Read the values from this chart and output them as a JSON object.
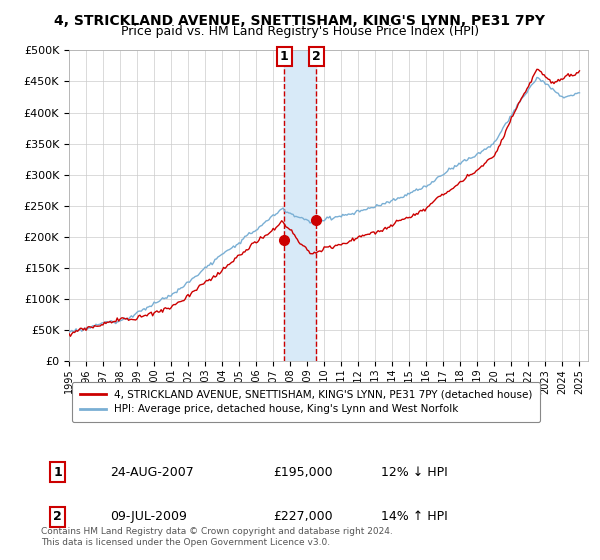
{
  "title_line1": "4, STRICKLAND AVENUE, SNETTISHAM, KING'S LYNN, PE31 7PY",
  "title_line2": "Price paid vs. HM Land Registry's House Price Index (HPI)",
  "ylabel_vals": [
    0,
    50000,
    100000,
    150000,
    200000,
    250000,
    300000,
    350000,
    400000,
    450000,
    500000
  ],
  "ylabel_labels": [
    "£0",
    "£50K",
    "£100K",
    "£150K",
    "£200K",
    "£250K",
    "£300K",
    "£350K",
    "£400K",
    "£450K",
    "£500K"
  ],
  "ylim": [
    0,
    500000
  ],
  "xlim_start": 1995.0,
  "xlim_end": 2025.5,
  "xtick_labels": [
    "1995",
    "1996",
    "1997",
    "1998",
    "1999",
    "2000",
    "2001",
    "2002",
    "2003",
    "2004",
    "2005",
    "2006",
    "2007",
    "2008",
    "2009",
    "2010",
    "2011",
    "2012",
    "2013",
    "2014",
    "2015",
    "2016",
    "2017",
    "2018",
    "2019",
    "2020",
    "2021",
    "2022",
    "2023",
    "2024",
    "2025"
  ],
  "sale1_x": 2007.648,
  "sale1_y": 195000,
  "sale2_x": 2009.52,
  "sale2_y": 227000,
  "sale1_label": "1",
  "sale2_label": "2",
  "vline1_x": 2007.648,
  "vline2_x": 2009.52,
  "vshade_x1": 2007.648,
  "vshade_x2": 2009.52,
  "legend_line1_label": "4, STRICKLAND AVENUE, SNETTISHAM, KING'S LYNN, PE31 7PY (detached house)",
  "legend_line2_label": "HPI: Average price, detached house, King's Lynn and West Norfolk",
  "table_row1": [
    "1",
    "24-AUG-2007",
    "£195,000",
    "12% ↓ HPI"
  ],
  "table_row2": [
    "2",
    "09-JUL-2009",
    "£227,000",
    "14% ↑ HPI"
  ],
  "footnote": "Contains HM Land Registry data © Crown copyright and database right 2024.\nThis data is licensed under the Open Government Licence v3.0.",
  "red_color": "#cc0000",
  "blue_color": "#7aafd4",
  "shade_color": "#d8eaf8",
  "grid_color": "#cccccc",
  "bg_color": "#ffffff",
  "title_fontsize": 10,
  "subtitle_fontsize": 9
}
